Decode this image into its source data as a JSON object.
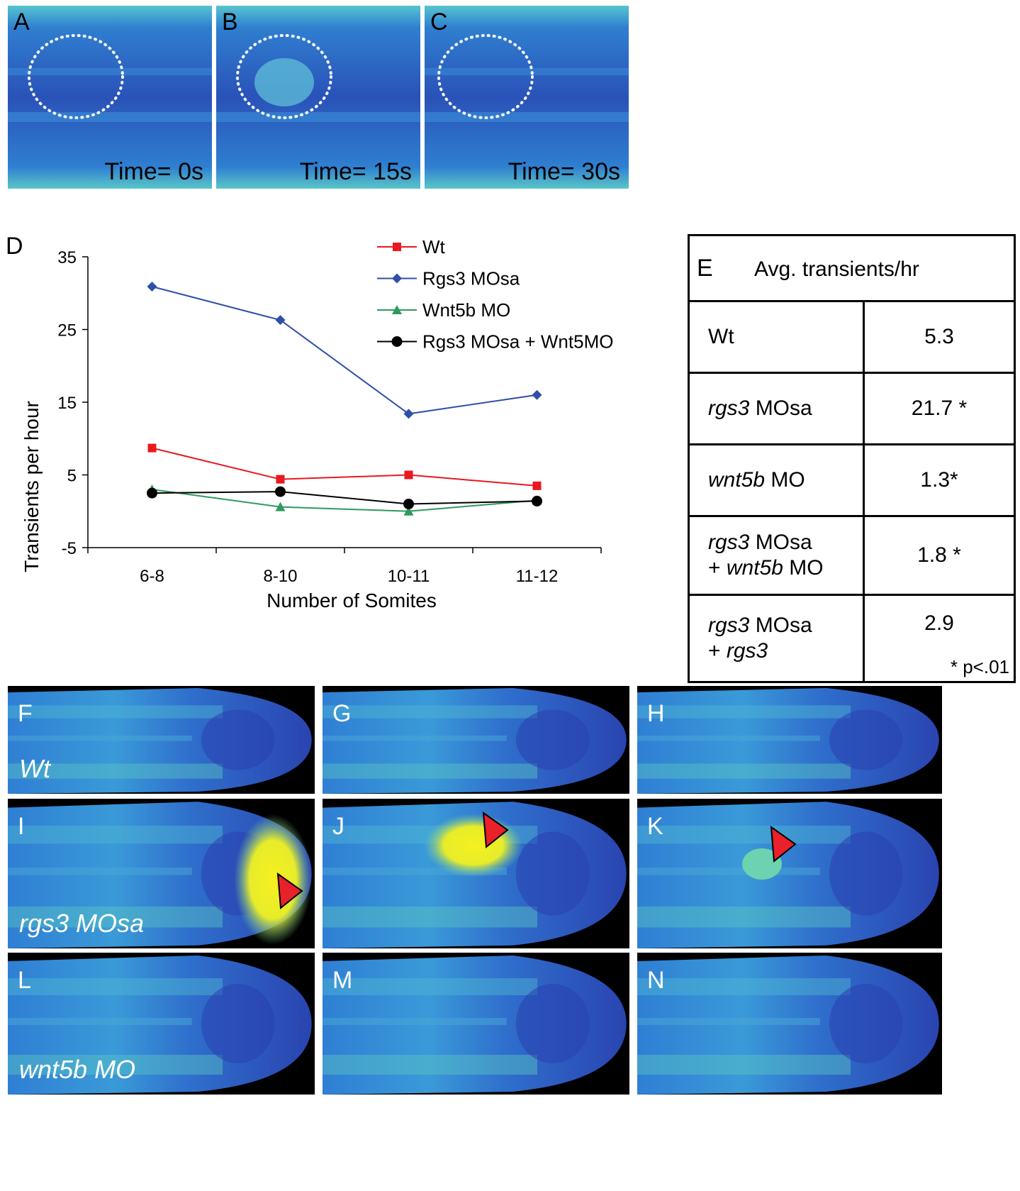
{
  "top_panels": [
    {
      "letter": "A",
      "time": "Time= 0s"
    },
    {
      "letter": "B",
      "time": "Time= 15s"
    },
    {
      "letter": "C",
      "time": "Time= 30s"
    }
  ],
  "panel_d_letter": "D",
  "chart_data": {
    "type": "line",
    "categories": [
      "6-8",
      "8-10",
      "10-11",
      "11-12"
    ],
    "xlabel": "Number of Somites",
    "ylabel": "Transients per hour",
    "ylim": [
      -5,
      35
    ],
    "yticks": [
      "35",
      "25",
      "15",
      "5",
      "-5"
    ],
    "legend_position": "top-right",
    "series": [
      {
        "name": "Wt",
        "color": "#e8191f",
        "marker": "square",
        "values": [
          8.7,
          4.4,
          5.0,
          3.5
        ]
      },
      {
        "name": "Rgs3 MOsa",
        "color": "#2f4fa8",
        "marker": "diamond",
        "values": [
          30.9,
          26.3,
          13.4,
          16.0
        ]
      },
      {
        "name": "Wnt5b MO",
        "color": "#2e9a5e",
        "marker": "triangle",
        "values": [
          3.0,
          0.6,
          0.0,
          1.5
        ]
      },
      {
        "name": "Rgs3 MOsa + Wnt5MO",
        "color": "#000000",
        "marker": "circle",
        "values": [
          2.5,
          2.7,
          1.0,
          1.4
        ]
      }
    ]
  },
  "table": {
    "letter": "E",
    "title": "Avg. transients/hr",
    "rows": [
      {
        "a": "",
        "b": "Wt",
        "c": "",
        "d": "",
        "value": "5.3"
      },
      {
        "a": "rgs3",
        "b": " MOsa",
        "c": "",
        "d": "",
        "value": "21.7 *"
      },
      {
        "a": "wnt5b",
        "b": " MO",
        "c": "",
        "d": "",
        "value": "1.3*"
      },
      {
        "a": "rgs3",
        "b": " MOsa",
        "c": "wnt5b",
        "d": " MO",
        "value": "1.8 *"
      },
      {
        "a": "rgs3",
        "b": " MOsa",
        "c": "rgs3",
        "d": "",
        "value": "2.9"
      }
    ],
    "plus": "+ ",
    "footnote": "* p<.01"
  },
  "grid_panels": [
    {
      "letter": "F",
      "condition": "Wt",
      "arrow": false
    },
    {
      "letter": "G",
      "condition": "",
      "arrow": false
    },
    {
      "letter": "H",
      "condition": "",
      "arrow": false
    },
    {
      "letter": "I",
      "condition": "rgs3 MOsa",
      "arrow": true
    },
    {
      "letter": "J",
      "condition": "",
      "arrow": true
    },
    {
      "letter": "K",
      "condition": "",
      "arrow": true
    },
    {
      "letter": "L",
      "condition": "wnt5b MO",
      "arrow": false
    },
    {
      "letter": "M",
      "condition": "",
      "arrow": false
    },
    {
      "letter": "N",
      "condition": "",
      "arrow": false
    }
  ],
  "colors": {
    "deep": "#2a44b0",
    "mid": "#2f86d6",
    "bright": "#4fc8cf",
    "hot": "#f5f020",
    "arrow": "#e8212a"
  }
}
